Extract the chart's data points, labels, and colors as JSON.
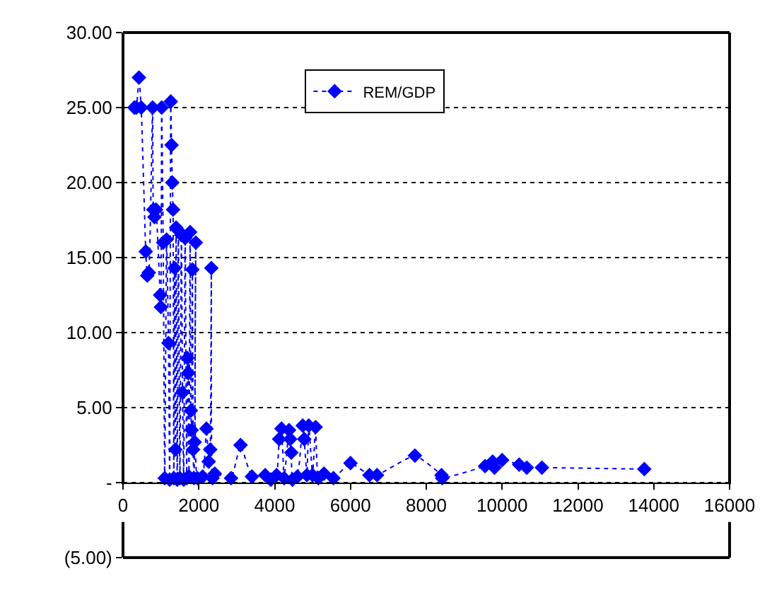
{
  "chart_data": {
    "type": "line",
    "xlim": [
      0,
      16000
    ],
    "ylim": [
      -5,
      30
    ],
    "xticks": [
      0,
      2000,
      4000,
      6000,
      8000,
      10000,
      12000,
      14000,
      16000
    ],
    "yticks": [
      {
        "value": -5,
        "label": "(5.00)"
      },
      {
        "value": 0,
        "label": "-"
      },
      {
        "value": 5,
        "label": "5.00"
      },
      {
        "value": 10,
        "label": "10.00"
      },
      {
        "value": 15,
        "label": "15.00"
      },
      {
        "value": 20,
        "label": "20.00"
      },
      {
        "value": 25,
        "label": "25.00"
      },
      {
        "value": 30,
        "label": "30.00"
      }
    ],
    "grid": "y",
    "legend": "top",
    "marker": "diamond",
    "line_style": "dotted",
    "x": [
      300,
      350,
      420,
      480,
      600,
      640,
      680,
      780,
      800,
      830,
      870,
      980,
      1000,
      1020,
      1060,
      1100,
      1150,
      1200,
      1230,
      1260,
      1280,
      1300,
      1320,
      1340,
      1360,
      1380,
      1400,
      1430,
      1460,
      1500,
      1540,
      1570,
      1600,
      1640,
      1680,
      1700,
      1720,
      1740,
      1770,
      1790,
      1810,
      1830,
      1850,
      1870,
      1890,
      1920,
      1960,
      2100,
      2200,
      2260,
      2300,
      2330,
      2360,
      2420,
      2850,
      3100,
      3400,
      3750,
      3900,
      4050,
      4120,
      4180,
      4250,
      4380,
      4410,
      4440,
      4470,
      4600,
      4740,
      4780,
      4850,
      4900,
      5000,
      5080,
      5150,
      5300,
      5550,
      6000,
      6500,
      6700,
      7700,
      8400,
      8420,
      9550,
      9750,
      9800,
      10000,
      10450,
      10650,
      11050,
      13750
    ],
    "series": [
      {
        "name": "REM/GDP",
        "color": "#0000ff",
        "values": [
          25,
          25,
          27,
          25,
          15.4,
          13.8,
          14,
          25,
          18.2,
          17.7,
          18.2,
          12.5,
          11.7,
          25,
          16,
          0.3,
          16.2,
          9.3,
          0.2,
          25.4,
          22.5,
          20,
          18.2,
          0.3,
          14.3,
          2.2,
          17,
          0.2,
          16.8,
          0.3,
          16.5,
          6,
          0.2,
          16.3,
          0.3,
          8.3,
          7.3,
          0.4,
          16.7,
          4.8,
          3.5,
          14.2,
          2.2,
          0.3,
          2.7,
          16,
          0.3,
          0.4,
          3.6,
          1.4,
          2.2,
          14.3,
          0.3,
          0.6,
          0.3,
          2.5,
          0.4,
          0.5,
          0.2,
          0.5,
          2.9,
          3.6,
          0.3,
          3.5,
          2.9,
          2,
          0.2,
          0.4,
          3.8,
          2.9,
          0.5,
          3.8,
          0.5,
          3.7,
          0.3,
          0.6,
          0.3,
          1.3,
          0.5,
          0.5,
          1.8,
          0.5,
          0.3,
          1.1,
          1.4,
          1,
          1.5,
          1.2,
          1,
          1,
          0.9
        ]
      }
    ]
  }
}
